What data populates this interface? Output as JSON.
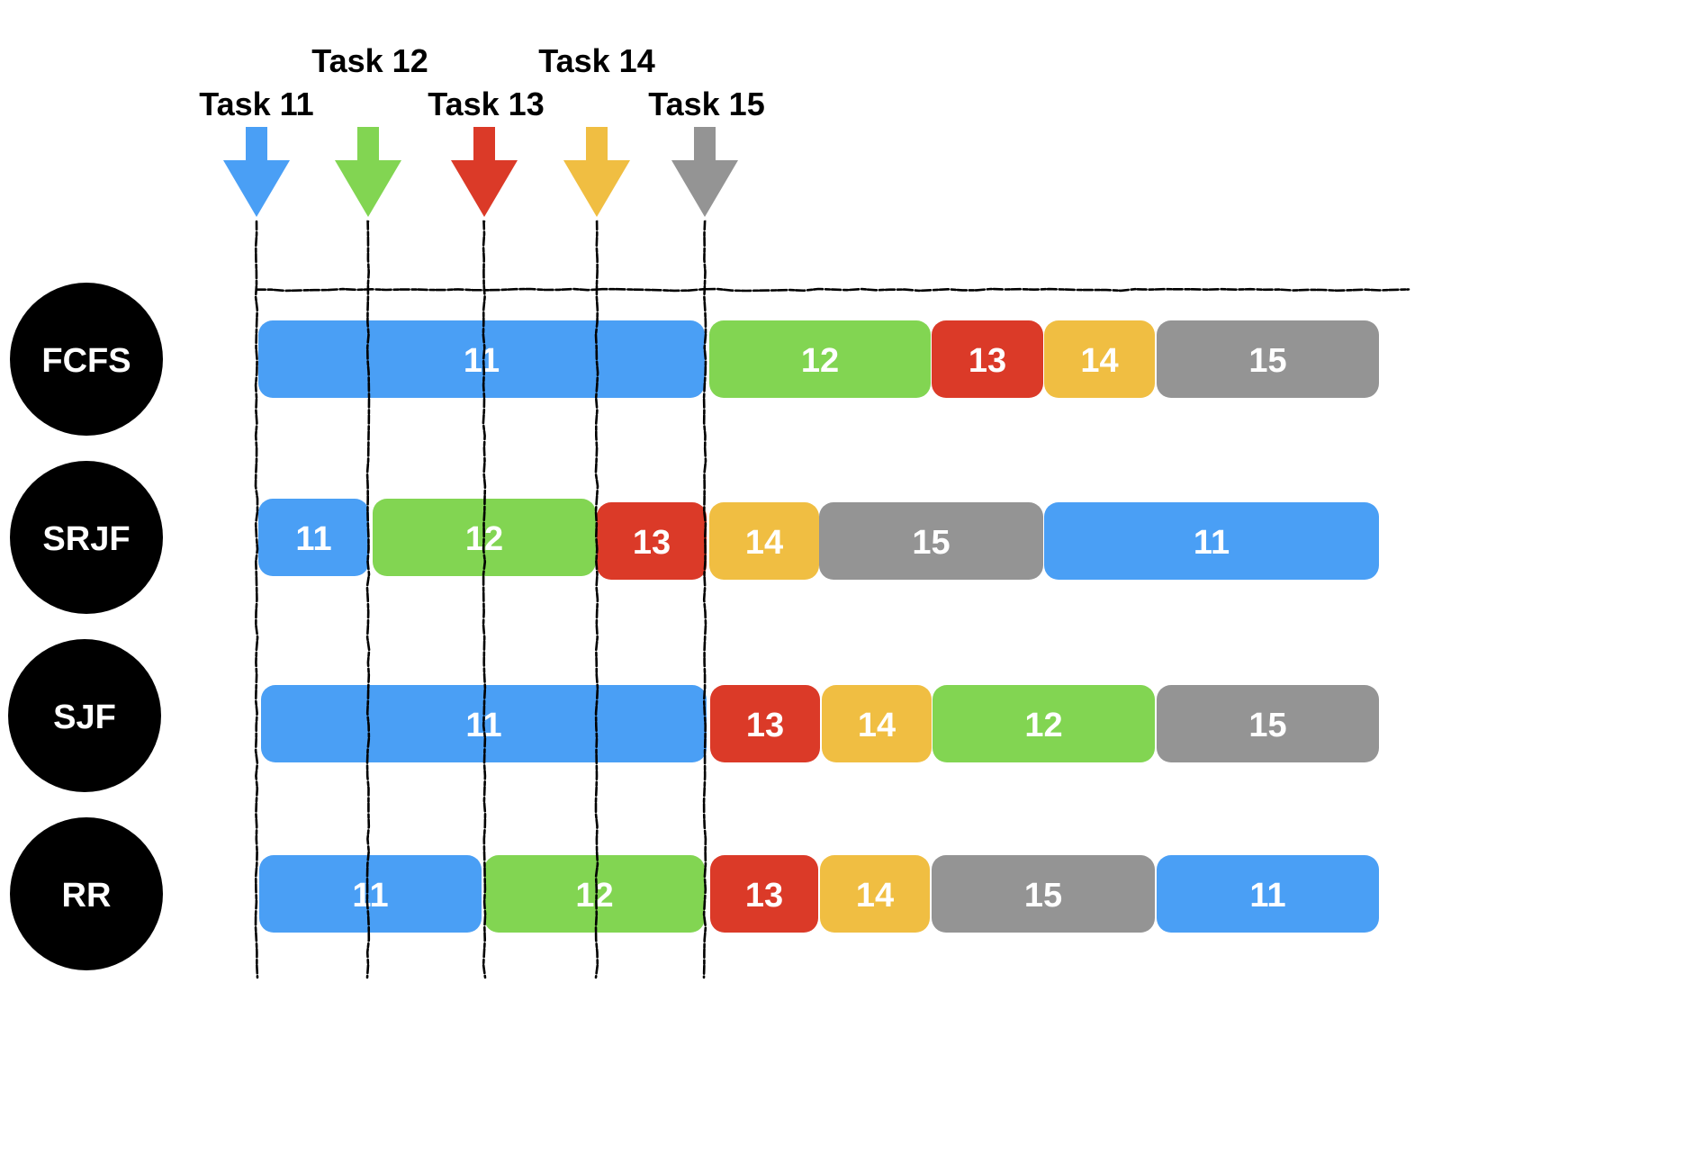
{
  "colors": {
    "11": "#4a9ff5",
    "12": "#82d552",
    "13": "#db3a28",
    "14": "#f0be42",
    "15": "#949494",
    "circle": "#000000",
    "guide": "#000000"
  },
  "tasks": [
    {
      "id": "11",
      "label": "Task 11"
    },
    {
      "id": "12",
      "label": "Task 12"
    },
    {
      "id": "13",
      "label": "Task 13"
    },
    {
      "id": "14",
      "label": "Task 14"
    },
    {
      "id": "15",
      "label": "Task 15"
    }
  ],
  "rows": [
    {
      "algorithm": "FCFS",
      "segments": [
        {
          "task": "11",
          "label": "11"
        },
        {
          "task": "12",
          "label": "12"
        },
        {
          "task": "13",
          "label": "13"
        },
        {
          "task": "14",
          "label": "14"
        },
        {
          "task": "15",
          "label": "15"
        }
      ]
    },
    {
      "algorithm": "SRJF",
      "segments": [
        {
          "task": "11",
          "label": "11"
        },
        {
          "task": "12",
          "label": "12"
        },
        {
          "task": "13",
          "label": "13"
        },
        {
          "task": "14",
          "label": "14"
        },
        {
          "task": "15",
          "label": "15"
        },
        {
          "task": "11",
          "label": "11"
        }
      ]
    },
    {
      "algorithm": "SJF",
      "segments": [
        {
          "task": "11",
          "label": "11"
        },
        {
          "task": "13",
          "label": "13"
        },
        {
          "task": "14",
          "label": "14"
        },
        {
          "task": "12",
          "label": "12"
        },
        {
          "task": "15",
          "label": "15"
        }
      ]
    },
    {
      "algorithm": "RR",
      "segments": [
        {
          "task": "11",
          "label": "11"
        },
        {
          "task": "12",
          "label": "12"
        },
        {
          "task": "13",
          "label": "13"
        },
        {
          "task": "14",
          "label": "14"
        },
        {
          "task": "15",
          "label": "15"
        },
        {
          "task": "11",
          "label": "11"
        }
      ]
    }
  ]
}
